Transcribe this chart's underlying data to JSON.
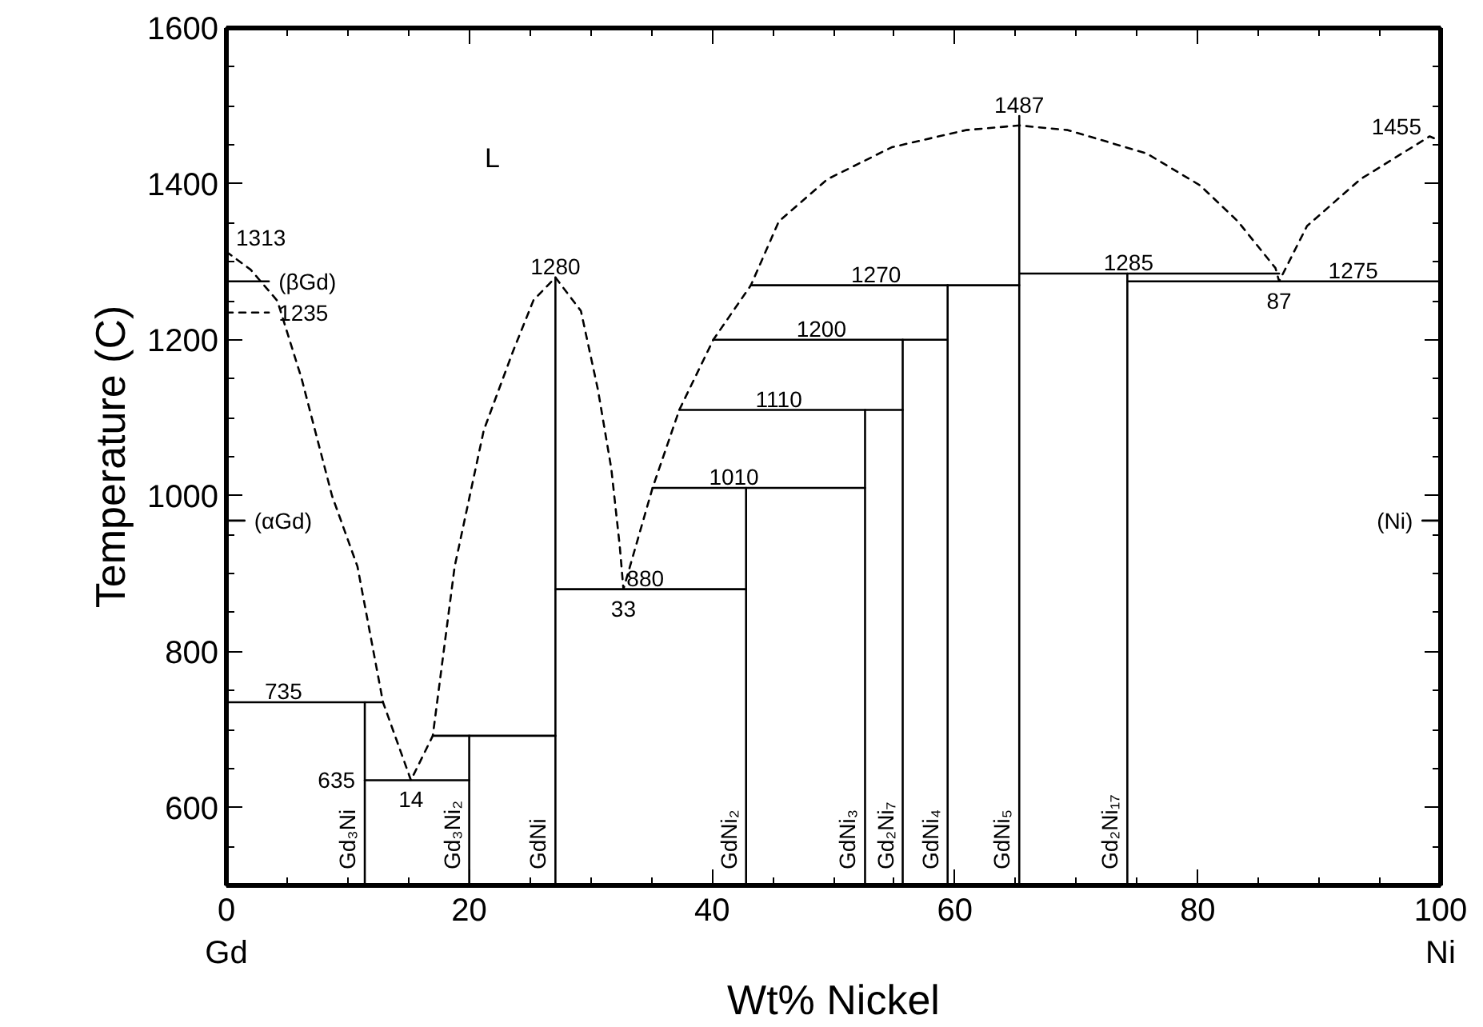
{
  "chart_data": {
    "type": "line",
    "xlabel": "Wt% Nickel",
    "ylabel": "Temperature (C)",
    "xlim": [
      0,
      100
    ],
    "ylim": [
      500,
      1600
    ],
    "xticks": [
      {
        "value": 0,
        "label": "0\nGd"
      },
      {
        "value": 5,
        "label": null
      },
      {
        "value": 10,
        "label": null
      },
      {
        "value": 15,
        "label": null
      },
      20,
      {
        "value": 25,
        "label": null
      },
      {
        "value": 30,
        "label": null
      },
      {
        "value": 35,
        "label": null
      },
      40,
      {
        "value": 45,
        "label": null
      },
      {
        "value": 50,
        "label": null
      },
      {
        "value": 55,
        "label": null
      },
      60,
      {
        "value": 65,
        "label": null
      },
      {
        "value": 70,
        "label": null
      },
      {
        "value": 75,
        "label": null
      },
      80,
      {
        "value": 85,
        "label": null
      },
      {
        "value": 90,
        "label": null
      },
      {
        "value": 95,
        "label": null
      },
      {
        "value": 100,
        "label": "100\nNi"
      }
    ],
    "yticks": [
      {
        "value": 500,
        "label": null
      },
      {
        "value": 550,
        "label": null
      },
      600,
      {
        "value": 650,
        "label": null
      },
      {
        "value": 700,
        "label": null
      },
      {
        "value": 750,
        "label": null
      },
      800,
      {
        "value": 850,
        "label": null
      },
      {
        "value": 900,
        "label": null
      },
      {
        "value": 950,
        "label": null
      },
      1000,
      {
        "value": 1050,
        "label": null
      },
      {
        "value": 1100,
        "label": null
      },
      {
        "value": 1150,
        "label": null
      },
      1200,
      {
        "value": 1250,
        "label": null
      },
      {
        "value": 1300,
        "label": null
      },
      {
        "value": 1350,
        "label": null
      },
      1400,
      {
        "value": 1450,
        "label": null
      },
      {
        "value": 1500,
        "label": null
      },
      {
        "value": 1550,
        "label": null
      },
      1600
    ],
    "grid": false,
    "series": [
      {
        "color": "#000000",
        "line_style": "dashed",
        "x": [
          0,
          2,
          4.2,
          6.2,
          8.7,
          10.8,
          12.9,
          15.2,
          17.0,
          18.8,
          21.2,
          23.6,
          25.3,
          27.1,
          29.2,
          30.6,
          31.7,
          32.4,
          32.7,
          35.1,
          37.3,
          40.1,
          43.2,
          45.5,
          49.5,
          54.8,
          60.9,
          65.3,
          69.3,
          75.8,
          80.2,
          83.3,
          86.4,
          86.7,
          89.0,
          93.4,
          99.1,
          100
        ],
        "values": [
          1313,
          1290,
          1250,
          1150,
          1000,
          909,
          735,
          635,
          692,
          909,
          1084,
          1185,
          1251,
          1280,
          1237,
          1136,
          1035,
          935,
          880,
          1010,
          1110,
          1200,
          1270,
          1352,
          1406,
          1447,
          1469,
          1475,
          1469,
          1439,
          1398,
          1352,
          1292,
          1275,
          1346,
          1406,
          1461,
          1455
        ]
      },
      {
        "color": "#000000",
        "line_style": "dashed",
        "x": [
          0,
          3.5
        ],
        "values": [
          1235,
          1235
        ]
      },
      {
        "color": "#000000",
        "line_style": "solid",
        "x": [
          0,
          3.5
        ],
        "values": [
          1275,
          1275
        ]
      },
      {
        "color": "#000000",
        "line_style": "solid",
        "x": [
          0,
          1.5
        ],
        "values": [
          968,
          968
        ]
      },
      {
        "color": "#000000",
        "line_style": "solid",
        "x": [
          100,
          98.5
        ],
        "values": [
          968,
          968
        ]
      },
      {
        "color": "#000000",
        "line_style": "solid",
        "x": [
          0,
          12.9
        ],
        "values": [
          735,
          735
        ]
      },
      {
        "color": "#000000",
        "line_style": "solid",
        "x": [
          11.4,
          20.0
        ],
        "values": [
          635,
          635
        ]
      },
      {
        "color": "#000000",
        "line_style": "solid",
        "x": [
          17.0,
          27.1
        ],
        "values": [
          692,
          692
        ]
      },
      {
        "color": "#000000",
        "line_style": "solid",
        "x": [
          27.1,
          42.8
        ],
        "values": [
          880,
          880
        ]
      },
      {
        "color": "#000000",
        "line_style": "solid",
        "x": [
          35.1,
          52.6
        ],
        "values": [
          1010,
          1010
        ]
      },
      {
        "color": "#000000",
        "line_style": "solid",
        "x": [
          37.3,
          55.7
        ],
        "values": [
          1110,
          1110
        ]
      },
      {
        "color": "#000000",
        "line_style": "solid",
        "x": [
          40.1,
          59.4
        ],
        "values": [
          1200,
          1200
        ]
      },
      {
        "color": "#000000",
        "line_style": "solid",
        "x": [
          43.2,
          65.3
        ],
        "values": [
          1270,
          1270
        ]
      },
      {
        "color": "#000000",
        "line_style": "solid",
        "x": [
          65.3,
          86.7
        ],
        "values": [
          1285,
          1285
        ]
      },
      {
        "color": "#000000",
        "line_style": "solid",
        "x": [
          74.2,
          100
        ],
        "values": [
          1275,
          1275
        ]
      },
      {
        "name": "Gd₃Ni",
        "color": "#000000",
        "line_style": "solid",
        "x": [
          11.4,
          11.4
        ],
        "values": [
          500,
          735
        ]
      },
      {
        "name": "Gd₃Ni₂",
        "color": "#000000",
        "line_style": "solid",
        "x": [
          20.0,
          20.0
        ],
        "values": [
          500,
          692
        ]
      },
      {
        "name": "GdNi",
        "color": "#000000",
        "line_style": "solid",
        "x": [
          27.1,
          27.1
        ],
        "values": [
          500,
          1280
        ]
      },
      {
        "name": "GdNi₂",
        "color": "#000000",
        "line_style": "solid",
        "x": [
          42.8,
          42.8
        ],
        "values": [
          500,
          1010
        ]
      },
      {
        "name": "GdNi₃",
        "color": "#000000",
        "line_style": "solid",
        "x": [
          52.6,
          52.6
        ],
        "values": [
          500,
          1110
        ]
      },
      {
        "name": "Gd₂Ni₇",
        "color": "#000000",
        "line_style": "solid",
        "x": [
          55.7,
          55.7
        ],
        "values": [
          500,
          1200
        ]
      },
      {
        "name": "GdNi₄",
        "color": "#000000",
        "line_style": "solid",
        "x": [
          59.4,
          59.4
        ],
        "values": [
          500,
          1270
        ]
      },
      {
        "name": "GdNi₅",
        "color": "#000000",
        "line_style": "solid",
        "x": [
          65.3,
          65.3
        ],
        "values": [
          500,
          1487
        ]
      },
      {
        "name": "Gd₂Ni₁₇",
        "color": "#000000",
        "line_style": "solid",
        "x": [
          74.2,
          74.2
        ],
        "values": [
          500,
          1285
        ]
      }
    ],
    "annotations": [
      {
        "text": "1313",
        "x": 0,
        "y": 1313
      },
      {
        "text": "(βGd)",
        "x": 3.5,
        "y": 1275
      },
      {
        "text": "(αGd)",
        "x": 1.5,
        "y": 968
      },
      {
        "text": "(Ni)",
        "x": 98.5,
        "y": 968
      },
      {
        "text": "1235",
        "x": 3.5,
        "y": 1235
      },
      {
        "text": "1280",
        "x": 27.1,
        "y": 1280
      },
      {
        "text": "735",
        "x": 4.7,
        "y": 735
      },
      {
        "text": "635",
        "x": 11.4,
        "y": 635
      },
      {
        "text": "14",
        "x": 15.2,
        "y": 635
      },
      {
        "text": "33",
        "x": 32.7,
        "y": 880
      },
      {
        "text": "880",
        "x": 34.5,
        "y": 880
      },
      {
        "text": "1010",
        "x": 41.8,
        "y": 1010
      },
      {
        "text": "1110",
        "x": 45.5,
        "y": 1110
      },
      {
        "text": "1200",
        "x": 49.0,
        "y": 1200
      },
      {
        "text": "1270",
        "x": 53.5,
        "y": 1270
      },
      {
        "text": "1487",
        "x": 65.3,
        "y": 1487
      },
      {
        "text": "1285",
        "x": 74.3,
        "y": 1285
      },
      {
        "text": "1275",
        "x": 92.8,
        "y": 1275
      },
      {
        "text": "87",
        "x": 86.7,
        "y": 1275
      },
      {
        "text": "1455",
        "x": 100,
        "y": 1455
      },
      "L"
    ]
  }
}
